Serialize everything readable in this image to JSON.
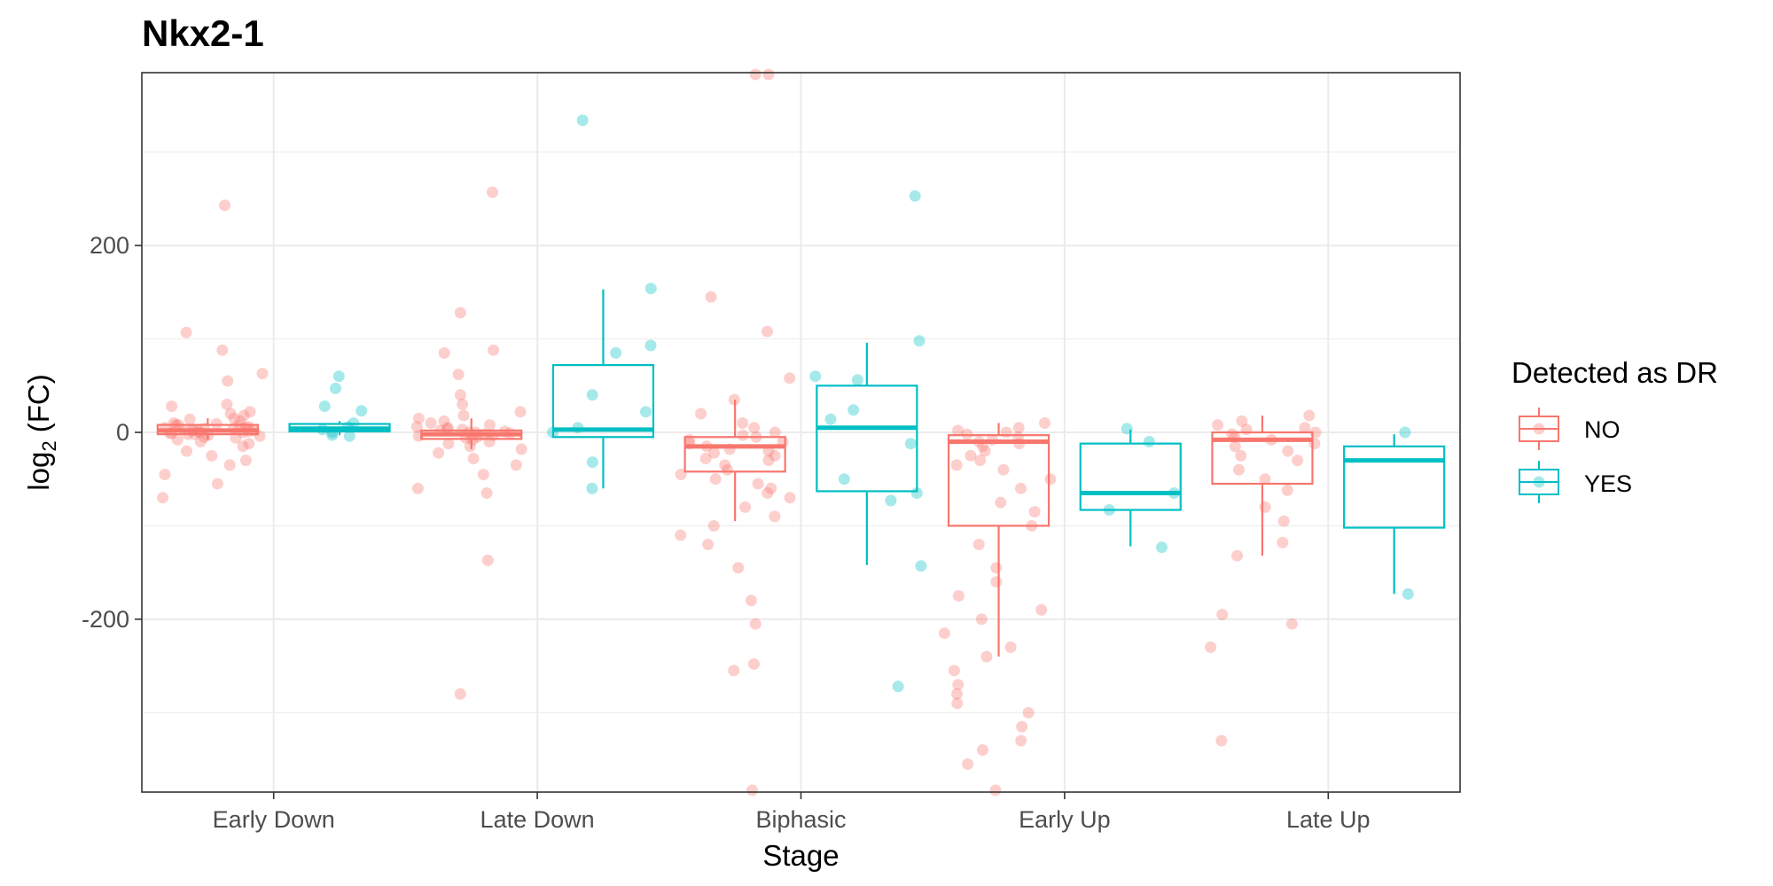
{
  "chart_data": {
    "type": "boxplot",
    "title": "Nkx2-1",
    "xlabel": "Stage",
    "ylabel_main": "log",
    "ylabel_sub": "2",
    "ylabel_rest": " (FC)",
    "categories": [
      "Early Down",
      "Late Down",
      "Biphasic",
      "Early Up",
      "Late Up"
    ],
    "ylim": [
      -385,
      385
    ],
    "yticks": [
      -200,
      0,
      200
    ],
    "ytick_labels": [
      "-200",
      "0",
      "200"
    ],
    "grid": true,
    "legend": {
      "title": "Detected as DR",
      "position": "right",
      "entries": [
        {
          "label": "NO",
          "color": "#F8766D"
        },
        {
          "label": "YES",
          "color": "#00BFC4"
        }
      ]
    },
    "series": [
      {
        "name": "NO",
        "color": "#F8766D",
        "boxes": [
          {
            "category": "Early Down",
            "q1": -2,
            "median": 2,
            "q3": 8,
            "whisker_low": -8,
            "whisker_high": 15
          },
          {
            "category": "Late Down",
            "q1": -7,
            "median": -2,
            "q3": 2,
            "whisker_low": -18,
            "whisker_high": 15
          },
          {
            "category": "Biphasic",
            "q1": -42,
            "median": -15,
            "q3": -5,
            "whisker_low": -95,
            "whisker_high": 35
          },
          {
            "category": "Early Up",
            "q1": -100,
            "median": -10,
            "q3": -3,
            "whisker_low": -240,
            "whisker_high": 10
          },
          {
            "category": "Late Up",
            "q1": -55,
            "median": -8,
            "q3": 0,
            "whisker_low": -132,
            "whisker_high": 18
          }
        ],
        "points": [
          {
            "category": "Early Down",
            "values": [
              243,
              107,
              88,
              63,
              55,
              30,
              28,
              22,
              20,
              18,
              15,
              14,
              12,
              10,
              9,
              8,
              8,
              7,
              6,
              5,
              5,
              4,
              4,
              3,
              3,
              2,
              2,
              1,
              1,
              0,
              0,
              -1,
              -1,
              -2,
              -2,
              -3,
              -4,
              -5,
              -6,
              -8,
              -10,
              -12,
              -15,
              -20,
              -25,
              -30,
              -35,
              -45,
              -55,
              -70
            ]
          },
          {
            "category": "Late Down",
            "values": [
              257,
              128,
              88,
              85,
              62,
              40,
              30,
              22,
              18,
              15,
              12,
              10,
              8,
              6,
              5,
              4,
              3,
              2,
              1,
              0,
              0,
              -1,
              -2,
              -3,
              -4,
              -5,
              -6,
              -8,
              -10,
              -12,
              -15,
              -18,
              -22,
              -28,
              -35,
              -45,
              -60,
              -65,
              -137,
              -280
            ]
          },
          {
            "category": "Biphasic",
            "values": [
              385,
              385,
              145,
              108,
              58,
              35,
              20,
              10,
              5,
              0,
              -3,
              -5,
              -8,
              -10,
              -12,
              -15,
              -18,
              -20,
              -22,
              -25,
              -28,
              -30,
              -35,
              -40,
              -45,
              -50,
              -55,
              -60,
              -65,
              -70,
              -80,
              -90,
              -100,
              -110,
              -120,
              -145,
              -180,
              -205,
              -248,
              -255,
              -385
            ]
          },
          {
            "category": "Early Up",
            "values": [
              10,
              5,
              2,
              0,
              -2,
              -5,
              -8,
              -10,
              -12,
              -15,
              -20,
              -25,
              -30,
              -35,
              -40,
              -50,
              -60,
              -75,
              -85,
              -100,
              -120,
              -145,
              -160,
              -175,
              -190,
              -200,
              -215,
              -230,
              -240,
              -255,
              -270,
              -280,
              -290,
              -300,
              -315,
              -330,
              -340,
              -355,
              -385
            ]
          },
          {
            "category": "Late Up",
            "values": [
              18,
              12,
              8,
              5,
              3,
              0,
              -2,
              -5,
              -8,
              -12,
              -15,
              -20,
              -25,
              -30,
              -40,
              -50,
              -62,
              -80,
              -95,
              -118,
              -132,
              -195,
              -205,
              -230,
              -330
            ]
          }
        ]
      },
      {
        "name": "YES",
        "color": "#00BFC4",
        "boxes": [
          {
            "category": "Early Down",
            "q1": 1,
            "median": 4,
            "q3": 9,
            "whisker_low": -3,
            "whisker_high": 12
          },
          {
            "category": "Late Down",
            "q1": -5,
            "median": 3,
            "q3": 72,
            "whisker_low": -60,
            "whisker_high": 153
          },
          {
            "category": "Biphasic",
            "q1": -63,
            "median": 5,
            "q3": 50,
            "whisker_low": -142,
            "whisker_high": 96
          },
          {
            "category": "Early Up",
            "q1": -83,
            "median": -65,
            "q3": -12,
            "whisker_low": -122,
            "whisker_high": 3
          },
          {
            "category": "Late Up",
            "q1": -102,
            "median": -30,
            "q3": -15,
            "whisker_low": -173,
            "whisker_high": -2
          }
        ],
        "points": [
          {
            "category": "Early Down",
            "values": [
              60,
              47,
              28,
              23,
              10,
              6,
              3,
              0,
              -3,
              -4
            ]
          },
          {
            "category": "Late Down",
            "values": [
              334,
              154,
              93,
              85,
              40,
              22,
              5,
              0,
              -32,
              -60
            ]
          },
          {
            "category": "Biphasic",
            "values": [
              253,
              98,
              60,
              56,
              24,
              14,
              -12,
              -50,
              -65,
              -73,
              -143,
              -272
            ]
          },
          {
            "category": "Early Up",
            "values": [
              4,
              -10,
              -65,
              -83,
              -123
            ]
          },
          {
            "category": "Late Up",
            "values": [
              0,
              -173
            ]
          }
        ]
      }
    ]
  }
}
